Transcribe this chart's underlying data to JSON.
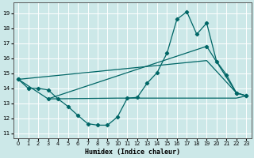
{
  "xlabel": "Humidex (Indice chaleur)",
  "bg_color": "#cce8e8",
  "grid_color": "#ffffff",
  "line_color": "#006666",
  "xlim": [
    -0.5,
    23.5
  ],
  "ylim": [
    10.7,
    19.7
  ],
  "yticks": [
    11,
    12,
    13,
    14,
    15,
    16,
    17,
    18,
    19
  ],
  "xticks": [
    0,
    1,
    2,
    3,
    4,
    5,
    6,
    7,
    8,
    9,
    10,
    11,
    12,
    13,
    14,
    15,
    16,
    17,
    18,
    19,
    20,
    21,
    22,
    23
  ],
  "main_x": [
    0,
    1,
    2,
    3,
    4,
    5,
    6,
    7,
    8,
    9,
    10,
    11,
    12,
    13,
    14,
    15,
    16,
    17,
    18,
    19,
    20,
    21,
    22,
    23
  ],
  "main_y": [
    14.6,
    14.0,
    14.0,
    13.9,
    13.3,
    12.8,
    12.2,
    11.65,
    11.55,
    11.55,
    12.1,
    13.35,
    13.4,
    14.35,
    15.05,
    16.35,
    18.6,
    19.1,
    17.6,
    18.35,
    15.8,
    14.9,
    13.7,
    13.5
  ],
  "line2_x": [
    0,
    3,
    19,
    22,
    23
  ],
  "line2_y": [
    14.6,
    13.3,
    16.8,
    13.7,
    13.5
  ],
  "line3_x": [
    0,
    19,
    22,
    23
  ],
  "line3_y": [
    14.6,
    15.85,
    13.7,
    13.5
  ],
  "line4_x": [
    3,
    10,
    22,
    23
  ],
  "line4_y": [
    13.3,
    13.35,
    13.35,
    13.5
  ]
}
